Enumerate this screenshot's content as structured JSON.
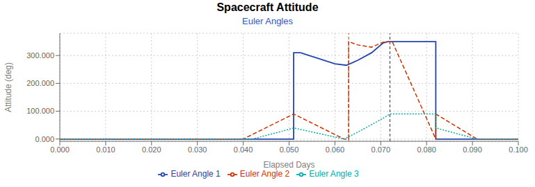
{
  "chart_data": {
    "type": "line",
    "title": "Spacecraft Attitude",
    "subtitle": "Euler Angles",
    "x_label": "Elapsed Days",
    "y_label": "Attitude (deg)",
    "xlim": [
      0.0,
      0.1
    ],
    "ylim": [
      -8,
      380
    ],
    "xticks": [
      {
        "value": 0.0,
        "label": "0.000"
      },
      {
        "value": 0.01,
        "label": "0.010"
      },
      {
        "value": 0.02,
        "label": "0.020"
      },
      {
        "value": 0.03,
        "label": "0.030"
      },
      {
        "value": 0.04,
        "label": "0.040"
      },
      {
        "value": 0.05,
        "label": "0.050"
      },
      {
        "value": 0.06,
        "label": "0.060"
      },
      {
        "value": 0.07,
        "label": "0.070"
      },
      {
        "value": 0.08,
        "label": "0.080"
      },
      {
        "value": 0.09,
        "label": "0.090"
      },
      {
        "value": 0.1,
        "label": "0.100"
      }
    ],
    "yticks": [
      {
        "value": 0.0,
        "label": "0.000"
      },
      {
        "value": 100.0,
        "label": "100.000"
      },
      {
        "value": 200.0,
        "label": "200.000"
      },
      {
        "value": 300.0,
        "label": "300.000"
      }
    ],
    "grid": true,
    "legend": "bottom",
    "series": [
      {
        "name": "Euler Angle 1",
        "color": "#2244aa",
        "line_style": "solid",
        "x": [
          0.0,
          0.051,
          0.051,
          0.0525,
          0.06,
          0.0625,
          0.0625,
          0.065,
          0.068,
          0.0705,
          0.0715,
          0.0715,
          0.082,
          0.082,
          0.1
        ],
        "values": [
          0.0,
          0.0,
          310.0,
          310.0,
          270.0,
          265.0,
          265.0,
          283.0,
          310.0,
          345.0,
          350.0,
          350.0,
          350.0,
          0.0,
          0.0
        ]
      },
      {
        "name": "Euler Angle 2",
        "color": "#cc3300",
        "line_style": "dashed",
        "x": [
          0.0,
          0.04,
          0.051,
          0.062,
          0.062,
          0.062,
          0.063,
          0.063,
          0.065,
          0.068,
          0.0705,
          0.0725,
          0.082,
          0.082,
          0.082,
          0.091,
          0.1
        ],
        "values": [
          0.0,
          0.0,
          90.0,
          0.0,
          0.0,
          0.0,
          0.0,
          350.0,
          338.0,
          330.0,
          348.0,
          350.0,
          0.0,
          0.0,
          90.0,
          0.0,
          0.0
        ]
      },
      {
        "name": "Euler Angle 3",
        "color": "#00aaaa",
        "line_style": "dotted",
        "x": [
          0.0,
          0.042,
          0.05,
          0.051,
          0.062,
          0.062,
          0.065,
          0.07,
          0.072,
          0.073,
          0.082,
          0.082,
          0.091,
          0.1
        ],
        "values": [
          0.0,
          0.0,
          35.0,
          40.0,
          0.0,
          0.0,
          25.0,
          70.0,
          90.0,
          90.0,
          90.0,
          40.0,
          0.0,
          0.0
        ]
      }
    ],
    "vlines": [
      {
        "x": 0.063,
        "color": "#cc3300",
        "line_style": "dashed"
      },
      {
        "x": 0.072,
        "color": "#333333",
        "line_style": "dashed"
      }
    ]
  }
}
